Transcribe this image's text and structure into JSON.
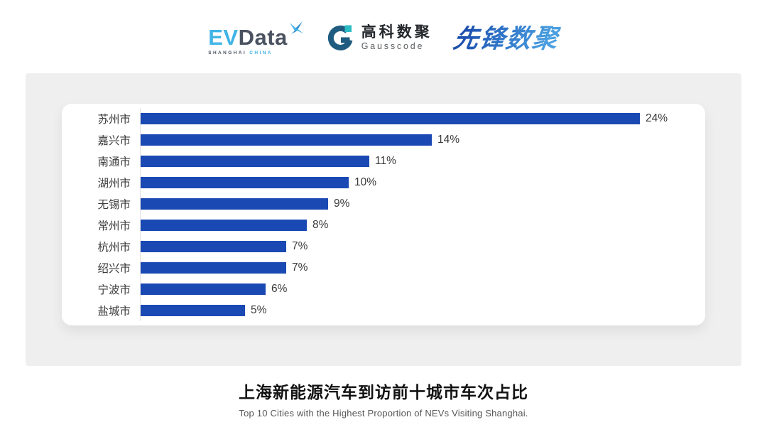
{
  "header": {
    "evdata": {
      "ev": "EV",
      "data": "Data",
      "sub_left": "SHANGHAI",
      "sub_right": "CHINA"
    },
    "gausscode": {
      "cn": "高科数聚",
      "en": "Gausscode"
    },
    "pioneer": {
      "cn": "先锋数聚"
    }
  },
  "colors": {
    "bar": "#1a49b4",
    "panel_bg": "#efefef",
    "evdata_blue": "#41b4e6",
    "evdata_gray": "#4a5260",
    "gauss_dark_blue": "#1f5c80",
    "gauss_cyan": "#2bbcc4",
    "pioneer_blue": "#2f74c8"
  },
  "chart_data": {
    "type": "bar",
    "orientation": "horizontal",
    "title": "上海新能源汽车到访前十城市车次占比",
    "subtitle": "Top 10 Cities with the Highest Proportion of NEVs Visiting Shanghai.",
    "categories": [
      "苏州市",
      "嘉兴市",
      "南通市",
      "湖州市",
      "无锡市",
      "常州市",
      "杭州市",
      "绍兴市",
      "宁波市",
      "盐城市"
    ],
    "values": [
      24,
      14,
      11,
      10,
      9,
      8,
      7,
      7,
      6,
      5
    ],
    "unit": "%",
    "value_labels": [
      "24%",
      "14%",
      "11%",
      "10%",
      "9%",
      "8%",
      "7%",
      "7%",
      "6%",
      "5%"
    ],
    "xlim": [
      0,
      27
    ],
    "grid": false,
    "legend": false,
    "bar_color": "#1a49b4"
  },
  "footer": {
    "title": "上海新能源汽车到访前十城市车次占比",
    "subtitle": "Top 10 Cities with the Highest Proportion of  NEVs Visiting Shanghai."
  }
}
